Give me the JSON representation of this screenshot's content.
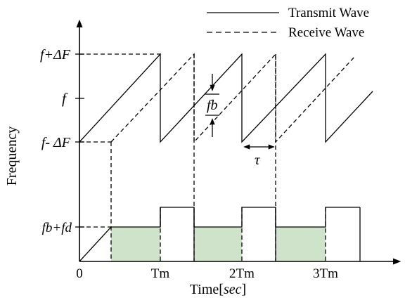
{
  "legend": {
    "transmit": "Transmit Wave",
    "receive": "Receive Wave"
  },
  "axes": {
    "y_label": "Frequency",
    "x_label_main": "Time[",
    "x_label_unit": "sec",
    "x_label_end": "]",
    "origin": "0"
  },
  "y_ticks": {
    "top": "f+ΔF",
    "mid": "f",
    "low": "f- ΔF",
    "beat": "fb+fd"
  },
  "x_ticks": {
    "t1": "Tm",
    "t2": "2Tm",
    "t3": "3Tm"
  },
  "annotations": {
    "beat_freq": "fb",
    "delay": "τ"
  },
  "colors": {
    "stroke": "#000000",
    "beat_fill": "#cfe3cb",
    "background": "#ffffff"
  }
}
